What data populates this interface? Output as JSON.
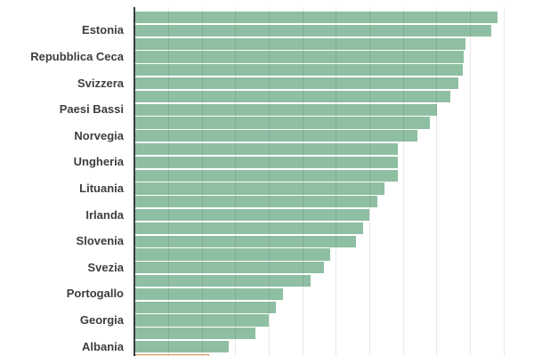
{
  "chart_data": {
    "type": "bar",
    "orientation": "horizontal",
    "title": "",
    "note": "top and bottom of chart cropped; no numeric axis tick labels visible; category labels shown only on alternate bars; last partially visible bar is highlighted in orange",
    "bars": [
      {
        "label": "",
        "value": 108.2
      },
      {
        "label": "Estonia",
        "value": 106.2
      },
      {
        "label": "",
        "value": 98.4
      },
      {
        "label": "Repubblica Ceca",
        "value": 98.1
      },
      {
        "label": "",
        "value": 97.8
      },
      {
        "label": "Svizzera",
        "value": 96.5
      },
      {
        "label": "",
        "value": 94.1
      },
      {
        "label": "Paesi Bassi",
        "value": 90.1
      },
      {
        "label": "",
        "value": 88.0
      },
      {
        "label": "Norvegia",
        "value": 84.3
      },
      {
        "label": "",
        "value": 78.2
      },
      {
        "label": "Ungheria",
        "value": 78.2
      },
      {
        "label": "",
        "value": 78.2
      },
      {
        "label": "Lituania",
        "value": 74.3
      },
      {
        "label": "",
        "value": 72.1
      },
      {
        "label": "Irlanda",
        "value": 69.9
      },
      {
        "label": "",
        "value": 68.1
      },
      {
        "label": "Slovenia",
        "value": 65.9
      },
      {
        "label": "",
        "value": 58.2
      },
      {
        "label": "Svezia",
        "value": 56.4
      },
      {
        "label": "",
        "value": 52.2
      },
      {
        "label": "Portogallo",
        "value": 44.0
      },
      {
        "label": "",
        "value": 42.0
      },
      {
        "label": "Georgia",
        "value": 39.9
      },
      {
        "label": "",
        "value": 35.9
      },
      {
        "label": "Albania",
        "value": 27.9
      },
      {
        "label": "",
        "value": 22.1,
        "highlighted": true
      }
    ],
    "x_axis": {
      "tick_labels_visible": false,
      "gridline_interval_units": 10,
      "gridline_count": 11,
      "min": 0
    },
    "legend": "none",
    "colors": {
      "bar": "#8fbfa2",
      "highlight_fill": "#f6e3c9",
      "highlight_border": "#dfa173",
      "axis_line": "#3b3b3b",
      "label_text": "#3d3d3d",
      "background": "#ffffff"
    }
  }
}
